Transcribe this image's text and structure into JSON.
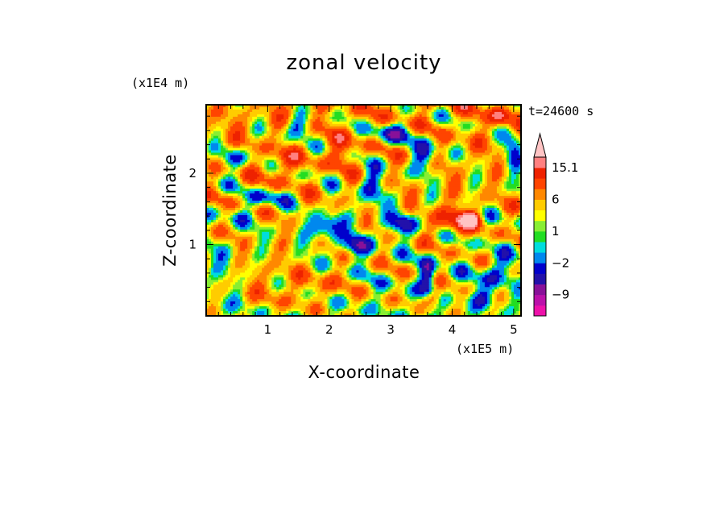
{
  "chart_data": {
    "type": "heatmap",
    "title": "zonal velocity",
    "xlabel": "X-coordinate",
    "ylabel": "Z-coordinate",
    "x_unit": "(x1E5 m)",
    "y_unit": "(x1E4 m)",
    "time_label": "t=24600 s",
    "xlim": [
      0,
      5.12
    ],
    "ylim": [
      0,
      2.96
    ],
    "x_ticks": [
      {
        "value": 1,
        "label": "1"
      },
      {
        "value": 2,
        "label": "2"
      },
      {
        "value": 3,
        "label": "3"
      },
      {
        "value": 4,
        "label": "4"
      },
      {
        "value": 5,
        "label": "5"
      }
    ],
    "y_ticks": [
      {
        "value": 1,
        "label": "1"
      },
      {
        "value": 2,
        "label": "2"
      }
    ],
    "colorbar": {
      "levels": [
        -15,
        -12,
        -9,
        -6,
        -4,
        -2,
        -1,
        0,
        1,
        2,
        4,
        6,
        9,
        12,
        15.1
      ],
      "colors": [
        "#ee11aa",
        "#bb11aa",
        "#881199",
        "#2211aa",
        "#0000cc",
        "#0088ee",
        "#00dddd",
        "#22dd22",
        "#88ee33",
        "#ffff00",
        "#ffcc00",
        "#ff8800",
        "#ff4400",
        "#ee2200",
        "#ff8080",
        "#ffc4c4"
      ],
      "labels": [
        {
          "value": 15.1,
          "label": "15.1"
        },
        {
          "value": 6,
          "label": "6"
        },
        {
          "value": 1,
          "label": "1"
        },
        {
          "value": -2,
          "label": "−2"
        },
        {
          "value": -9,
          "label": "−9"
        }
      ]
    },
    "field_features": [
      {
        "x": 0.9,
        "z": 0.55,
        "sx": 0.35,
        "sz": 0.35,
        "u": 2.0
      },
      {
        "x": 1.2,
        "z": 0.35,
        "sx": 0.3,
        "sz": 0.3,
        "u": 3.0
      },
      {
        "x": 0.3,
        "z": 0.75,
        "sx": 0.3,
        "sz": 0.25,
        "u": -1.5
      },
      {
        "x": 1.9,
        "z": 0.4,
        "sx": 0.35,
        "sz": 0.25,
        "u": 4.0
      },
      {
        "x": 1.95,
        "z": 1.25,
        "sx": 0.25,
        "sz": 0.16,
        "u": -10.0
      },
      {
        "x": 2.45,
        "z": 1.0,
        "sx": 0.25,
        "sz": 0.15,
        "u": -9.0
      },
      {
        "x": 2.7,
        "z": 1.8,
        "sx": 0.2,
        "sz": 0.3,
        "u": -7.0
      },
      {
        "x": 3.2,
        "z": 1.3,
        "sx": 0.25,
        "sz": 0.15,
        "u": -9.0
      },
      {
        "x": 3.6,
        "z": 0.5,
        "sx": 0.12,
        "sz": 0.3,
        "u": -10.0
      },
      {
        "x": 3.0,
        "z": 2.55,
        "sx": 0.3,
        "sz": 0.15,
        "u": -9.0
      },
      {
        "x": 3.55,
        "z": 2.25,
        "sx": 0.2,
        "sz": 0.25,
        "u": -8.0
      },
      {
        "x": 4.0,
        "z": 1.35,
        "sx": 0.35,
        "sz": 0.2,
        "u": 8.0
      },
      {
        "x": 4.3,
        "z": 1.35,
        "sx": 0.15,
        "sz": 0.1,
        "u": 12.0
      },
      {
        "x": 3.65,
        "z": 0.25,
        "sx": 0.15,
        "sz": 0.12,
        "u": 8.0
      },
      {
        "x": 4.7,
        "z": 0.6,
        "sx": 0.25,
        "sz": 0.2,
        "u": -7.0
      },
      {
        "x": 4.5,
        "z": 0.25,
        "sx": 0.2,
        "sz": 0.12,
        "u": -6.0
      },
      {
        "x": 5.0,
        "z": 2.3,
        "sx": 0.15,
        "sz": 0.25,
        "u": -8.0
      },
      {
        "x": 1.5,
        "z": 2.65,
        "sx": 0.2,
        "sz": 0.15,
        "u": -7.0
      },
      {
        "x": 0.45,
        "z": 2.2,
        "sx": 0.2,
        "sz": 0.15,
        "u": -6.0
      },
      {
        "x": 1.0,
        "z": 1.65,
        "sx": 0.3,
        "sz": 0.12,
        "u": -6.0
      },
      {
        "x": 0.5,
        "z": 1.4,
        "sx": 0.25,
        "sz": 0.15,
        "u": -3.0
      },
      {
        "x": 4.8,
        "z": 2.8,
        "sx": 0.2,
        "sz": 0.12,
        "u": 7.0
      },
      {
        "x": 1.2,
        "z": 2.1,
        "sx": 0.25,
        "sz": 0.2,
        "u": 5.0
      },
      {
        "x": 2.2,
        "z": 2.3,
        "sx": 0.3,
        "sz": 0.2,
        "u": 4.0
      }
    ]
  }
}
